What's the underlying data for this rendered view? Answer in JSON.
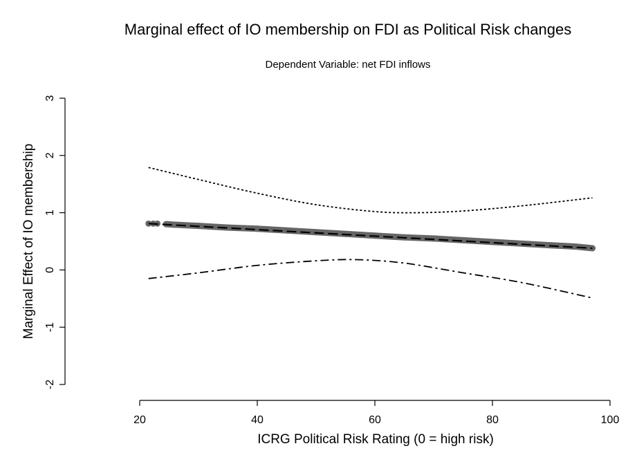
{
  "chart_data": {
    "type": "line",
    "title": "Marginal effect of IO membership on FDI as Political Risk changes",
    "subtitle": "Dependent Variable: net FDI inflows",
    "xlabel": "ICRG Political Risk Rating (0 = high risk)",
    "ylabel": "Marginal Effect of IO membership",
    "xlim": [
      10,
      100
    ],
    "ylim": [
      -2,
      3
    ],
    "xticks": [
      "20",
      "40",
      "60",
      "80",
      "100"
    ],
    "yticks": [
      "-2",
      "-1",
      "0",
      "1",
      "2",
      "3"
    ],
    "grid": false,
    "series": [
      {
        "style": "dotted",
        "color": "#000000",
        "x": [
          21.5,
          30,
          40,
          50,
          60,
          67,
          75,
          85,
          97
        ],
        "y": [
          1.79,
          1.58,
          1.34,
          1.14,
          1.02,
          1.0,
          1.03,
          1.12,
          1.26
        ]
      },
      {
        "style": "dashdot",
        "color": "#000000",
        "x": [
          21.5,
          30,
          40,
          50,
          57,
          65,
          75,
          85,
          97
        ],
        "y": [
          -0.15,
          -0.05,
          0.08,
          0.16,
          0.18,
          0.12,
          -0.05,
          -0.22,
          -0.49
        ]
      },
      {
        "style": "dashed",
        "color": "#000000",
        "x": [
          21.5,
          97
        ],
        "y": [
          0.81,
          0.38
        ]
      },
      {
        "style": "points",
        "color": "#666666",
        "x": [
          21.5,
          22.3,
          23,
          24.5,
          26,
          28,
          30,
          35,
          40,
          45,
          50,
          55,
          60,
          65,
          70,
          75,
          80,
          85,
          90,
          94,
          96,
          97
        ],
        "y": [
          0.81,
          0.81,
          0.81,
          0.8,
          0.79,
          0.78,
          0.77,
          0.74,
          0.72,
          0.69,
          0.66,
          0.63,
          0.6,
          0.57,
          0.55,
          0.52,
          0.49,
          0.46,
          0.43,
          0.41,
          0.39,
          0.38
        ]
      }
    ]
  }
}
